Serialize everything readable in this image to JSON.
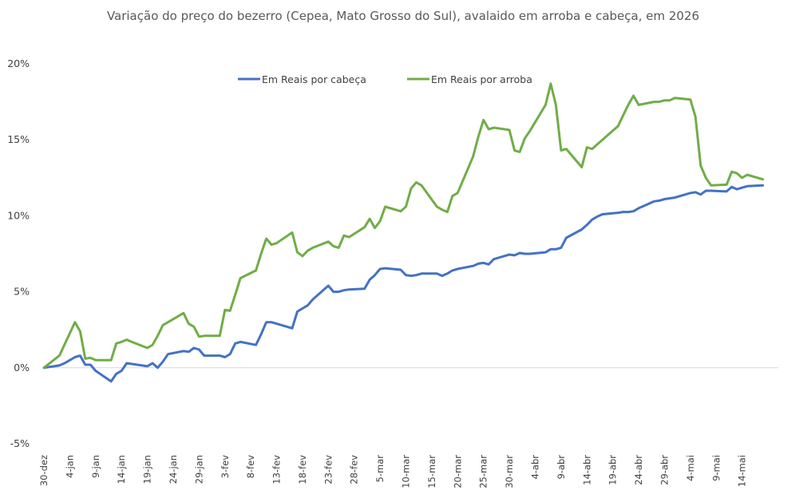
{
  "chart_data": {
    "type": "line",
    "title": "Variação do preço do bezerro (Cepea, Mato Grosso do Sul), avalaido em arroba e cabeça, em 2026",
    "xlabel": "",
    "ylabel": "",
    "ylim": [
      -5,
      20
    ],
    "yticks": [
      -5,
      0,
      5,
      10,
      15,
      20
    ],
    "ytick_labels": [
      "-5%",
      "0%",
      "5%",
      "10%",
      "15%",
      "20%"
    ],
    "grid": false,
    "legend_position": "top-center",
    "x_tick_labels": [
      "30-dez",
      "4-jan",
      "9-jan",
      "14-jan",
      "19-jan",
      "24-jan",
      "29-jan",
      "3-fev",
      "8-fev",
      "13-fev",
      "18-fev",
      "23-fev",
      "28-fev",
      "5-mar",
      "10-mar",
      "15-mar",
      "20-mar",
      "25-mar",
      "30-mar",
      "4-abr",
      "9-abr",
      "14-abr",
      "19-abr",
      "24-abr",
      "29-abr",
      "4-mai",
      "9-mai",
      "14-mai"
    ],
    "x_tick_days": [
      0,
      5,
      10,
      15,
      20,
      25,
      30,
      35,
      40,
      45,
      50,
      55,
      60,
      65,
      70,
      75,
      80,
      85,
      90,
      95,
      100,
      105,
      110,
      115,
      120,
      125,
      130,
      135
    ],
    "x_range_days": [
      0,
      142
    ],
    "series": [
      {
        "name": "Em Reais por cabeça",
        "color": "#4472C4",
        "x": [
          0,
          1,
          2,
          3,
          4,
          6,
          7,
          8,
          9,
          10,
          13,
          14,
          15,
          16,
          17,
          20,
          21,
          22,
          23,
          24,
          27,
          28,
          29,
          30,
          31,
          34,
          35,
          36,
          37,
          38,
          41,
          42,
          43,
          44,
          45,
          48,
          49,
          50,
          51,
          52,
          55,
          56,
          57,
          58,
          59,
          62,
          63,
          64,
          65,
          66,
          69,
          70,
          71,
          72,
          73,
          76,
          77,
          78,
          79,
          80,
          83,
          84,
          85,
          86,
          87,
          90,
          91,
          92,
          93,
          94,
          97,
          98,
          99,
          100,
          101,
          104,
          105,
          106,
          107,
          108,
          111,
          112,
          113,
          114,
          115,
          118,
          119,
          120,
          121,
          122,
          125,
          126,
          127,
          128,
          129,
          132,
          133,
          134,
          135,
          136,
          139
        ],
        "values": [
          0.0,
          0.05,
          0.1,
          0.15,
          0.3,
          0.7,
          0.8,
          0.2,
          0.2,
          -0.2,
          -0.9,
          -0.4,
          -0.2,
          0.3,
          0.25,
          0.1,
          0.3,
          0.0,
          0.4,
          0.9,
          1.1,
          1.05,
          1.3,
          1.2,
          0.8,
          0.8,
          0.7,
          0.9,
          1.6,
          1.7,
          1.5,
          2.2,
          3.0,
          3.0,
          2.9,
          2.6,
          3.7,
          3.9,
          4.1,
          4.5,
          5.4,
          5.0,
          5.0,
          5.1,
          5.15,
          5.2,
          5.8,
          6.1,
          6.5,
          6.55,
          6.45,
          6.1,
          6.05,
          6.1,
          6.2,
          6.2,
          6.05,
          6.2,
          6.4,
          6.5,
          6.7,
          6.85,
          6.9,
          6.8,
          7.15,
          7.45,
          7.4,
          7.55,
          7.5,
          7.5,
          7.6,
          7.8,
          7.8,
          7.9,
          8.55,
          9.1,
          9.4,
          9.75,
          9.95,
          10.1,
          10.2,
          10.25,
          10.25,
          10.3,
          10.5,
          10.95,
          11.0,
          11.1,
          11.15,
          11.2,
          11.5,
          11.55,
          11.4,
          11.65,
          11.65,
          11.6,
          11.9,
          11.75,
          11.85,
          11.95,
          12.0
        ]
      },
      {
        "name": "Em Reais por arroba",
        "color": "#70AD47",
        "x": [
          0,
          3,
          6,
          7,
          8,
          9,
          10,
          13,
          14,
          15,
          16,
          17,
          20,
          21,
          22,
          23,
          24,
          27,
          28,
          29,
          30,
          31,
          34,
          35,
          36,
          37,
          38,
          41,
          42,
          43,
          44,
          45,
          48,
          49,
          50,
          51,
          52,
          55,
          56,
          57,
          58,
          59,
          62,
          63,
          64,
          65,
          66,
          69,
          70,
          71,
          72,
          73,
          76,
          77,
          78,
          79,
          80,
          83,
          84,
          85,
          86,
          87,
          90,
          91,
          92,
          93,
          94,
          97,
          98,
          99,
          100,
          101,
          104,
          105,
          106,
          107,
          108,
          111,
          112,
          113,
          114,
          115,
          118,
          119,
          120,
          121,
          122,
          125,
          126,
          127,
          128,
          129,
          132,
          133,
          134,
          135,
          136,
          139
        ],
        "values": [
          0.0,
          0.8,
          3.0,
          2.4,
          0.6,
          0.65,
          0.5,
          0.5,
          1.6,
          1.7,
          1.85,
          1.7,
          1.3,
          1.5,
          2.1,
          2.8,
          3.0,
          3.6,
          2.9,
          2.7,
          2.05,
          2.1,
          2.1,
          3.8,
          3.75,
          4.8,
          5.9,
          6.4,
          7.5,
          8.5,
          8.1,
          8.2,
          8.9,
          7.6,
          7.35,
          7.7,
          7.9,
          8.3,
          8.0,
          7.9,
          8.7,
          8.6,
          9.25,
          9.8,
          9.2,
          9.65,
          10.6,
          10.3,
          10.6,
          11.8,
          12.2,
          12.0,
          10.6,
          10.4,
          10.25,
          11.3,
          11.5,
          13.9,
          15.2,
          16.3,
          15.7,
          15.8,
          15.65,
          14.3,
          14.2,
          15.1,
          15.6,
          17.3,
          18.7,
          17.3,
          14.3,
          14.4,
          13.2,
          14.5,
          14.4,
          14.7,
          15.0,
          15.9,
          16.6,
          17.3,
          17.9,
          17.3,
          17.5,
          17.5,
          17.6,
          17.6,
          17.75,
          17.65,
          16.5,
          13.3,
          12.5,
          12.0,
          12.05,
          12.9,
          12.8,
          12.5,
          12.7,
          12.4
        ]
      }
    ]
  }
}
